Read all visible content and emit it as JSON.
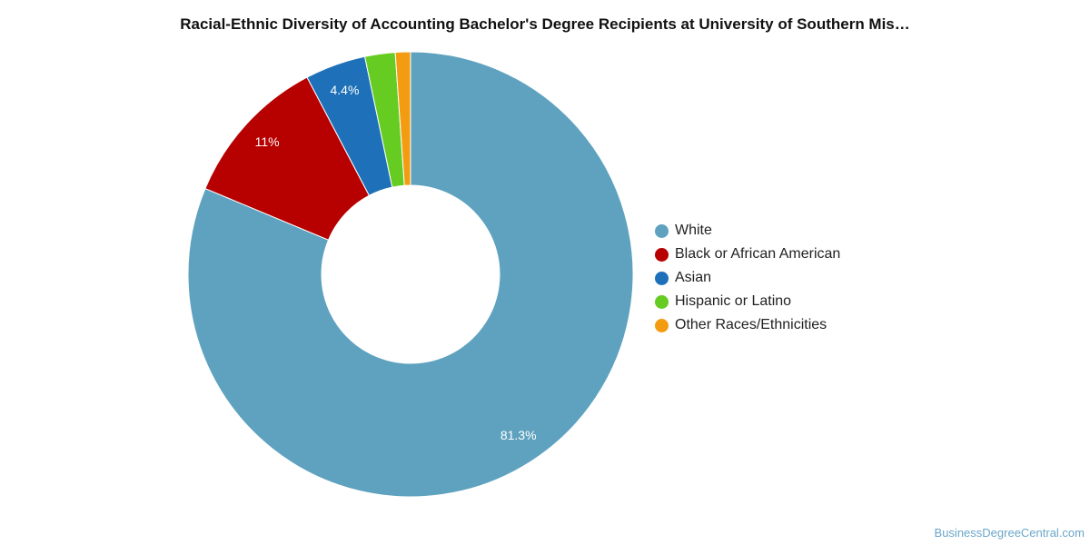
{
  "chart_data": {
    "type": "pie",
    "title": "Racial-Ethnic Diversity of Accounting Bachelor's Degree Recipients at University of Southern Mis…",
    "legend_placement": "right",
    "slices": [
      {
        "name": "White",
        "value": 81.3,
        "label": "81.3%",
        "color": "#5ea2bf"
      },
      {
        "name": "Black or African American",
        "value": 11.0,
        "label": "11%",
        "color": "#b70000"
      },
      {
        "name": "Asian",
        "value": 4.4,
        "label": "4.4%",
        "color": "#1e71b8"
      },
      {
        "name": "Hispanic or Latino",
        "value": 2.2,
        "label": "",
        "color": "#66cc22"
      },
      {
        "name": "Other Races/Ethnicities",
        "value": 1.1,
        "label": "",
        "color": "#f39c12"
      }
    ]
  },
  "footer": {
    "credit": "BusinessDegreeCentral.com"
  }
}
